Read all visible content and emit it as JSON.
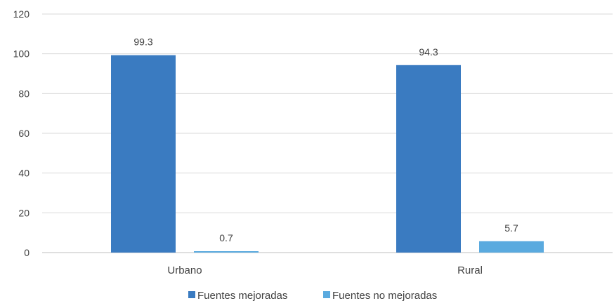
{
  "chart_data": {
    "type": "bar",
    "categories": [
      "Urbano",
      "Rural"
    ],
    "series": [
      {
        "name": "Fuentes mejoradas",
        "values": [
          99.3,
          94.3
        ],
        "color": "#3A7BC1"
      },
      {
        "name": "Fuentes no mejoradas",
        "values": [
          0.7,
          5.7
        ],
        "color": "#5AAADF"
      }
    ],
    "ylim": [
      0,
      120
    ],
    "yticks": [
      0,
      20,
      40,
      60,
      80,
      100,
      120
    ],
    "data_labels": [
      [
        "99.3",
        "94.3"
      ],
      [
        "0.7",
        "5.7"
      ]
    ],
    "grid": true,
    "legend_position": "bottom",
    "title": "",
    "xlabel": "",
    "ylabel": ""
  }
}
